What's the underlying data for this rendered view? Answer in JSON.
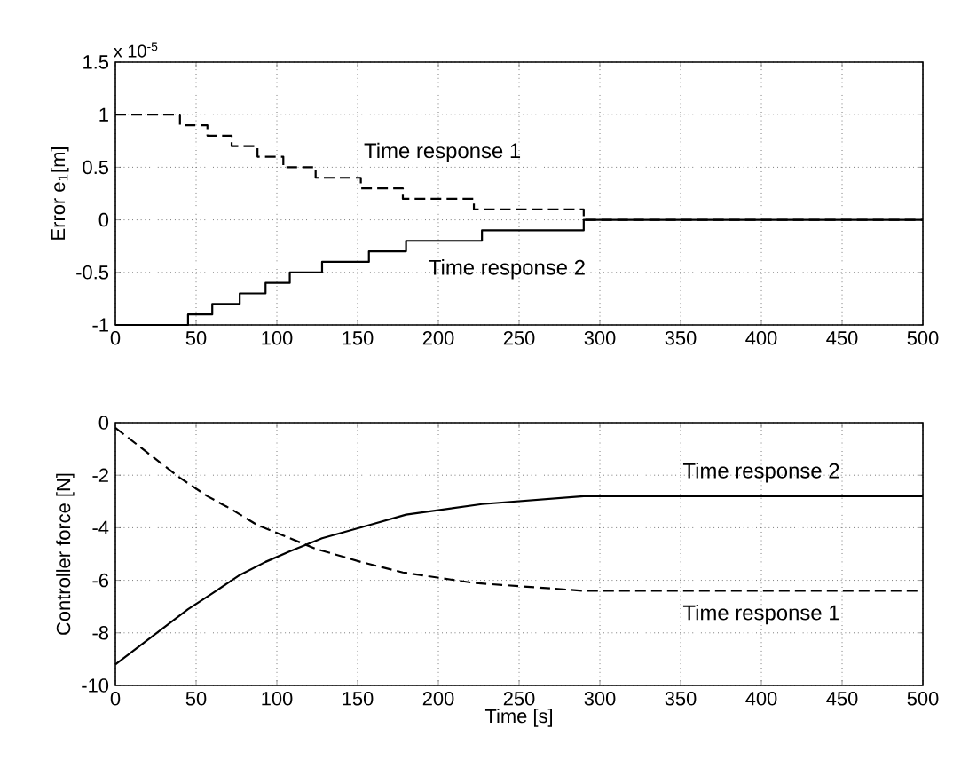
{
  "chart_data": [
    {
      "type": "step",
      "ylabel": "Error e$_{1}$[m]",
      "annotations": [
        "x 10$^{-5}$"
      ],
      "xlim": [
        0,
        500
      ],
      "xticks": [
        0,
        50,
        100,
        150,
        200,
        250,
        300,
        350,
        400,
        450,
        500
      ],
      "ylim": [
        -1,
        1.5
      ],
      "yticks": [
        -1,
        -0.5,
        0,
        0.5,
        1,
        1.5
      ],
      "grid": true,
      "legend": false,
      "series": [
        {
          "name": "Time response 1",
          "color": "#000000",
          "line_style": "dashed",
          "x": [
            0,
            40,
            57,
            72,
            88,
            104,
            124,
            152,
            178,
            222,
            290,
            500
          ],
          "values": [
            1,
            0.9,
            0.8,
            0.7,
            0.6,
            0.5,
            0.4,
            0.3,
            0.2,
            0.1,
            0,
            0
          ]
        },
        {
          "name": "Time response 2",
          "color": "#000000",
          "line_style": "solid",
          "x": [
            0,
            45,
            60,
            77,
            93,
            108,
            128,
            157,
            180,
            227,
            290,
            500
          ],
          "values": [
            -1,
            -0.9,
            -0.8,
            -0.7,
            -0.6,
            -0.5,
            -0.4,
            -0.3,
            -0.2,
            -0.1,
            0,
            0
          ]
        }
      ]
    },
    {
      "type": "line",
      "xlabel": "Time [s]",
      "ylabel": "Controller force [N]",
      "xlim": [
        0,
        500
      ],
      "xticks": [
        0,
        50,
        100,
        150,
        200,
        250,
        300,
        350,
        400,
        450,
        500
      ],
      "ylim": [
        -10,
        0
      ],
      "yticks": [
        -10,
        -8,
        -6,
        -4,
        -2,
        0
      ],
      "grid": true,
      "legend": false,
      "series": [
        {
          "name": "Time response 1",
          "color": "#000000",
          "line_style": "dashed",
          "x": [
            0,
            40,
            57,
            72,
            88,
            104,
            124,
            152,
            178,
            222,
            290,
            500
          ],
          "values": [
            -0.2,
            -2.1,
            -2.8,
            -3.3,
            -3.9,
            -4.3,
            -4.8,
            -5.3,
            -5.7,
            -6.1,
            -6.4,
            -6.4
          ]
        },
        {
          "name": "Time response 2",
          "color": "#000000",
          "line_style": "solid",
          "x": [
            0,
            45,
            60,
            77,
            93,
            108,
            128,
            157,
            180,
            227,
            290,
            500
          ],
          "values": [
            -9.2,
            -7.1,
            -6.5,
            -5.8,
            -5.3,
            -4.9,
            -4.4,
            -3.9,
            -3.5,
            -3.1,
            -2.8,
            -2.8
          ]
        }
      ]
    }
  ]
}
